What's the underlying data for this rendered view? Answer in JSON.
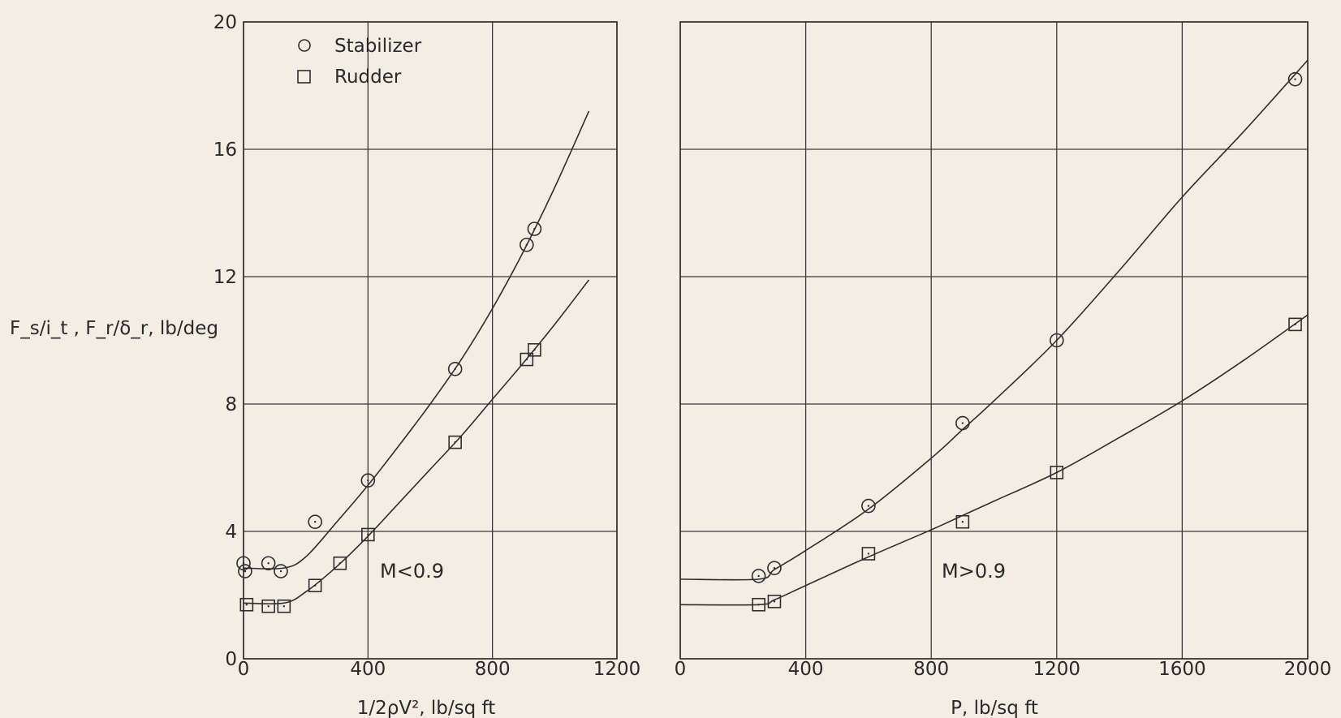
{
  "colors": {
    "background": "#f3ede3",
    "ink": "#2e2e2e"
  },
  "shared": {
    "ylabel": "F_s/i_t , F_r/δ_r, lb/deg",
    "ylim": [
      0,
      20
    ],
    "yticks": [
      0,
      4,
      8,
      12,
      16,
      20
    ],
    "legend": [
      {
        "symbol": "circle",
        "label": "Stabilizer"
      },
      {
        "symbol": "square",
        "label": "Rudder"
      }
    ],
    "legend_placement": "top-left of left panel",
    "grid": true
  },
  "chart_data": [
    {
      "type": "scatter",
      "title": "",
      "annotation": "M<0.9",
      "xlabel": "1/2ρV², lb/sq ft",
      "xlim": [
        0,
        1200
      ],
      "xticks": [
        0,
        400,
        800,
        1200
      ],
      "ylim": [
        0,
        20
      ],
      "series": [
        {
          "name": "Stabilizer",
          "marker": "circle",
          "points": [
            [
              0,
              3.0
            ],
            [
              5,
              2.75
            ],
            [
              80,
              3.0
            ],
            [
              120,
              2.75
            ],
            [
              230,
              4.3
            ],
            [
              400,
              5.6
            ],
            [
              680,
              9.1
            ],
            [
              910,
              13.0
            ],
            [
              935,
              13.5
            ]
          ],
          "fit": [
            [
              0,
              2.85
            ],
            [
              130,
              2.85
            ],
            [
              200,
              3.2
            ],
            [
              300,
              4.3
            ],
            [
              400,
              5.45
            ],
            [
              500,
              6.7
            ],
            [
              600,
              8.0
            ],
            [
              700,
              9.4
            ],
            [
              800,
              11.0
            ],
            [
              900,
              12.8
            ],
            [
              1000,
              14.8
            ],
            [
              1110,
              17.2
            ]
          ]
        },
        {
          "name": "Rudder",
          "marker": "square",
          "points": [
            [
              10,
              1.7
            ],
            [
              80,
              1.65
            ],
            [
              130,
              1.65
            ],
            [
              230,
              2.3
            ],
            [
              310,
              3.0
            ],
            [
              400,
              3.9
            ],
            [
              680,
              6.8
            ],
            [
              910,
              9.4
            ],
            [
              935,
              9.7
            ]
          ],
          "fit": [
            [
              0,
              1.75
            ],
            [
              130,
              1.75
            ],
            [
              200,
              2.1
            ],
            [
              300,
              2.9
            ],
            [
              400,
              3.85
            ],
            [
              500,
              4.9
            ],
            [
              600,
              5.95
            ],
            [
              700,
              7.0
            ],
            [
              800,
              8.15
            ],
            [
              900,
              9.3
            ],
            [
              1000,
              10.5
            ],
            [
              1110,
              11.9
            ]
          ]
        }
      ]
    },
    {
      "type": "scatter",
      "title": "",
      "annotation": "M>0.9",
      "xlabel": "P, lb/sq ft",
      "xlim": [
        0,
        2000
      ],
      "xticks": [
        0,
        400,
        800,
        1200,
        1600,
        2000
      ],
      "ylim": [
        0,
        20
      ],
      "series": [
        {
          "name": "Stabilizer",
          "marker": "circle",
          "points": [
            [
              250,
              2.6
            ],
            [
              300,
              2.85
            ],
            [
              600,
              4.8
            ],
            [
              900,
              7.4
            ],
            [
              1200,
              10.0
            ],
            [
              1960,
              18.2
            ]
          ],
          "fit": [
            [
              0,
              2.5
            ],
            [
              250,
              2.5
            ],
            [
              300,
              2.8
            ],
            [
              400,
              3.4
            ],
            [
              600,
              4.7
            ],
            [
              800,
              6.3
            ],
            [
              900,
              7.2
            ],
            [
              1000,
              8.1
            ],
            [
              1200,
              10.0
            ],
            [
              1400,
              12.2
            ],
            [
              1600,
              14.5
            ],
            [
              1800,
              16.6
            ],
            [
              2000,
              18.8
            ]
          ]
        },
        {
          "name": "Rudder",
          "marker": "square",
          "points": [
            [
              250,
              1.7
            ],
            [
              300,
              1.8
            ],
            [
              600,
              3.3
            ],
            [
              900,
              4.3
            ],
            [
              1200,
              5.85
            ],
            [
              1960,
              10.5
            ]
          ],
          "fit": [
            [
              0,
              1.7
            ],
            [
              250,
              1.7
            ],
            [
              300,
              1.85
            ],
            [
              400,
              2.3
            ],
            [
              600,
              3.2
            ],
            [
              800,
              4.05
            ],
            [
              900,
              4.5
            ],
            [
              1000,
              4.95
            ],
            [
              1200,
              5.85
            ],
            [
              1400,
              6.95
            ],
            [
              1600,
              8.1
            ],
            [
              1800,
              9.4
            ],
            [
              2000,
              10.8
            ]
          ]
        }
      ]
    }
  ]
}
